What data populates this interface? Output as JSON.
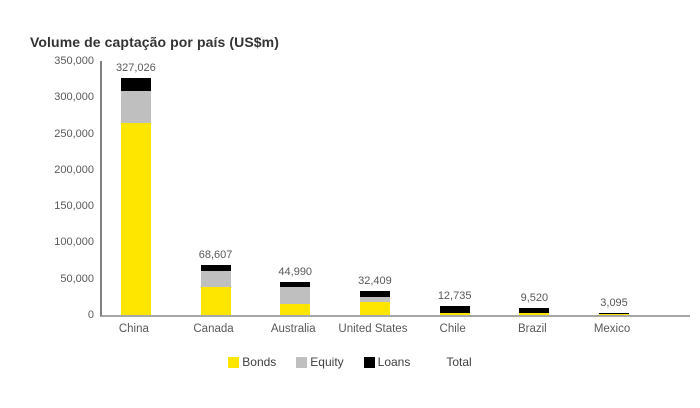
{
  "title": "Volume de captação por país (US$m)",
  "legend": [
    {
      "label": "Bonds",
      "color": "#FFE600"
    },
    {
      "label": "Equity",
      "color": "#BFBFBF"
    },
    {
      "label": "Loans",
      "color": "#000000"
    },
    {
      "label": "Total",
      "color": null
    }
  ],
  "colors": {
    "bonds": "#FFE600",
    "equity": "#BFBFBF",
    "loans": "#000000",
    "axis_line": "#808080",
    "baseline": "#A6A6A6",
    "label_text": "#595959",
    "title_text": "#333333"
  },
  "chart_data": {
    "type": "bar",
    "stacked": true,
    "title": "Volume de captação por país (US$m)",
    "categories": [
      "China",
      "Canada",
      "Australia",
      "United States",
      "Chile",
      "Brazil",
      "Mexico"
    ],
    "totals": [
      327026,
      68607,
      44990,
      32409,
      12735,
      9520,
      3095
    ],
    "total_labels": [
      "327,026",
      "68,607",
      "44,990",
      "32,409",
      "12,735",
      "9,520",
      "3,095"
    ],
    "series": [
      {
        "name": "Bonds",
        "color": "#FFE600",
        "values": [
          265000,
          38000,
          15000,
          18409,
          2735,
          2520,
          1595
        ]
      },
      {
        "name": "Equity",
        "color": "#BFBFBF",
        "values": [
          44000,
          22000,
          22990,
          7000,
          0,
          0,
          0
        ]
      },
      {
        "name": "Loans",
        "color": "#000000",
        "values": [
          18026,
          8607,
          7000,
          7000,
          10000,
          7000,
          1500
        ]
      }
    ],
    "ylim": [
      0,
      350000
    ],
    "ytick_values": [
      0,
      50000,
      100000,
      150000,
      200000,
      250000,
      300000,
      350000
    ],
    "ytick_labels": [
      "0",
      "50,000",
      "100,000",
      "150,000",
      "200,000",
      "250,000",
      "300,000",
      "350,000"
    ],
    "grid": false,
    "legend_position": "bottom",
    "xlabel": "",
    "ylabel": ""
  }
}
